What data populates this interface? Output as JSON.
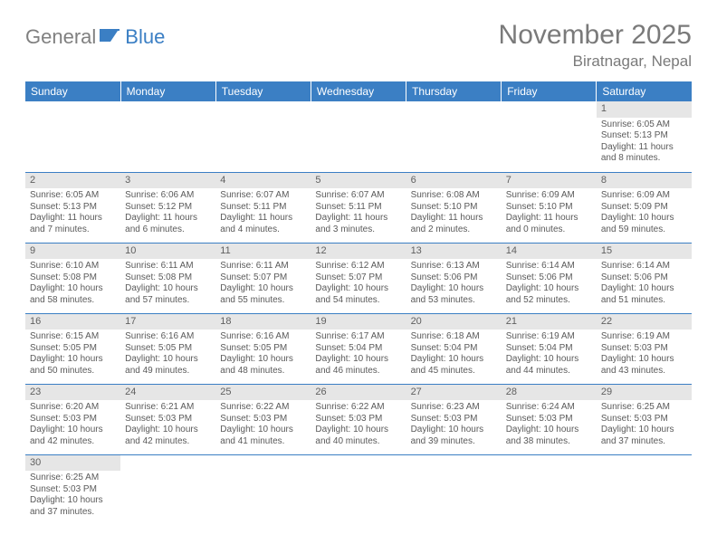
{
  "logo": {
    "text_a": "General",
    "text_b": "Blue"
  },
  "header": {
    "month_title": "November 2025",
    "location": "Biratnagar, Nepal"
  },
  "colors": {
    "header_bg": "#3b7fc4",
    "header_text": "#ffffff",
    "daynum_bg": "#e6e6e6",
    "row_border": "#3b7fc4",
    "body_text": "#5a5a5a",
    "logo_gray": "#808080",
    "logo_blue": "#3b7fc4"
  },
  "weekdays": [
    "Sunday",
    "Monday",
    "Tuesday",
    "Wednesday",
    "Thursday",
    "Friday",
    "Saturday"
  ],
  "weeks": [
    [
      null,
      null,
      null,
      null,
      null,
      null,
      {
        "n": "1",
        "sr": "Sunrise: 6:05 AM",
        "ss": "Sunset: 5:13 PM",
        "d1": "Daylight: 11 hours",
        "d2": "and 8 minutes."
      }
    ],
    [
      {
        "n": "2",
        "sr": "Sunrise: 6:05 AM",
        "ss": "Sunset: 5:13 PM",
        "d1": "Daylight: 11 hours",
        "d2": "and 7 minutes."
      },
      {
        "n": "3",
        "sr": "Sunrise: 6:06 AM",
        "ss": "Sunset: 5:12 PM",
        "d1": "Daylight: 11 hours",
        "d2": "and 6 minutes."
      },
      {
        "n": "4",
        "sr": "Sunrise: 6:07 AM",
        "ss": "Sunset: 5:11 PM",
        "d1": "Daylight: 11 hours",
        "d2": "and 4 minutes."
      },
      {
        "n": "5",
        "sr": "Sunrise: 6:07 AM",
        "ss": "Sunset: 5:11 PM",
        "d1": "Daylight: 11 hours",
        "d2": "and 3 minutes."
      },
      {
        "n": "6",
        "sr": "Sunrise: 6:08 AM",
        "ss": "Sunset: 5:10 PM",
        "d1": "Daylight: 11 hours",
        "d2": "and 2 minutes."
      },
      {
        "n": "7",
        "sr": "Sunrise: 6:09 AM",
        "ss": "Sunset: 5:10 PM",
        "d1": "Daylight: 11 hours",
        "d2": "and 0 minutes."
      },
      {
        "n": "8",
        "sr": "Sunrise: 6:09 AM",
        "ss": "Sunset: 5:09 PM",
        "d1": "Daylight: 10 hours",
        "d2": "and 59 minutes."
      }
    ],
    [
      {
        "n": "9",
        "sr": "Sunrise: 6:10 AM",
        "ss": "Sunset: 5:08 PM",
        "d1": "Daylight: 10 hours",
        "d2": "and 58 minutes."
      },
      {
        "n": "10",
        "sr": "Sunrise: 6:11 AM",
        "ss": "Sunset: 5:08 PM",
        "d1": "Daylight: 10 hours",
        "d2": "and 57 minutes."
      },
      {
        "n": "11",
        "sr": "Sunrise: 6:11 AM",
        "ss": "Sunset: 5:07 PM",
        "d1": "Daylight: 10 hours",
        "d2": "and 55 minutes."
      },
      {
        "n": "12",
        "sr": "Sunrise: 6:12 AM",
        "ss": "Sunset: 5:07 PM",
        "d1": "Daylight: 10 hours",
        "d2": "and 54 minutes."
      },
      {
        "n": "13",
        "sr": "Sunrise: 6:13 AM",
        "ss": "Sunset: 5:06 PM",
        "d1": "Daylight: 10 hours",
        "d2": "and 53 minutes."
      },
      {
        "n": "14",
        "sr": "Sunrise: 6:14 AM",
        "ss": "Sunset: 5:06 PM",
        "d1": "Daylight: 10 hours",
        "d2": "and 52 minutes."
      },
      {
        "n": "15",
        "sr": "Sunrise: 6:14 AM",
        "ss": "Sunset: 5:06 PM",
        "d1": "Daylight: 10 hours",
        "d2": "and 51 minutes."
      }
    ],
    [
      {
        "n": "16",
        "sr": "Sunrise: 6:15 AM",
        "ss": "Sunset: 5:05 PM",
        "d1": "Daylight: 10 hours",
        "d2": "and 50 minutes."
      },
      {
        "n": "17",
        "sr": "Sunrise: 6:16 AM",
        "ss": "Sunset: 5:05 PM",
        "d1": "Daylight: 10 hours",
        "d2": "and 49 minutes."
      },
      {
        "n": "18",
        "sr": "Sunrise: 6:16 AM",
        "ss": "Sunset: 5:05 PM",
        "d1": "Daylight: 10 hours",
        "d2": "and 48 minutes."
      },
      {
        "n": "19",
        "sr": "Sunrise: 6:17 AM",
        "ss": "Sunset: 5:04 PM",
        "d1": "Daylight: 10 hours",
        "d2": "and 46 minutes."
      },
      {
        "n": "20",
        "sr": "Sunrise: 6:18 AM",
        "ss": "Sunset: 5:04 PM",
        "d1": "Daylight: 10 hours",
        "d2": "and 45 minutes."
      },
      {
        "n": "21",
        "sr": "Sunrise: 6:19 AM",
        "ss": "Sunset: 5:04 PM",
        "d1": "Daylight: 10 hours",
        "d2": "and 44 minutes."
      },
      {
        "n": "22",
        "sr": "Sunrise: 6:19 AM",
        "ss": "Sunset: 5:03 PM",
        "d1": "Daylight: 10 hours",
        "d2": "and 43 minutes."
      }
    ],
    [
      {
        "n": "23",
        "sr": "Sunrise: 6:20 AM",
        "ss": "Sunset: 5:03 PM",
        "d1": "Daylight: 10 hours",
        "d2": "and 42 minutes."
      },
      {
        "n": "24",
        "sr": "Sunrise: 6:21 AM",
        "ss": "Sunset: 5:03 PM",
        "d1": "Daylight: 10 hours",
        "d2": "and 42 minutes."
      },
      {
        "n": "25",
        "sr": "Sunrise: 6:22 AM",
        "ss": "Sunset: 5:03 PM",
        "d1": "Daylight: 10 hours",
        "d2": "and 41 minutes."
      },
      {
        "n": "26",
        "sr": "Sunrise: 6:22 AM",
        "ss": "Sunset: 5:03 PM",
        "d1": "Daylight: 10 hours",
        "d2": "and 40 minutes."
      },
      {
        "n": "27",
        "sr": "Sunrise: 6:23 AM",
        "ss": "Sunset: 5:03 PM",
        "d1": "Daylight: 10 hours",
        "d2": "and 39 minutes."
      },
      {
        "n": "28",
        "sr": "Sunrise: 6:24 AM",
        "ss": "Sunset: 5:03 PM",
        "d1": "Daylight: 10 hours",
        "d2": "and 38 minutes."
      },
      {
        "n": "29",
        "sr": "Sunrise: 6:25 AM",
        "ss": "Sunset: 5:03 PM",
        "d1": "Daylight: 10 hours",
        "d2": "and 37 minutes."
      }
    ],
    [
      {
        "n": "30",
        "sr": "Sunrise: 6:25 AM",
        "ss": "Sunset: 5:03 PM",
        "d1": "Daylight: 10 hours",
        "d2": "and 37 minutes."
      },
      null,
      null,
      null,
      null,
      null,
      null
    ]
  ]
}
